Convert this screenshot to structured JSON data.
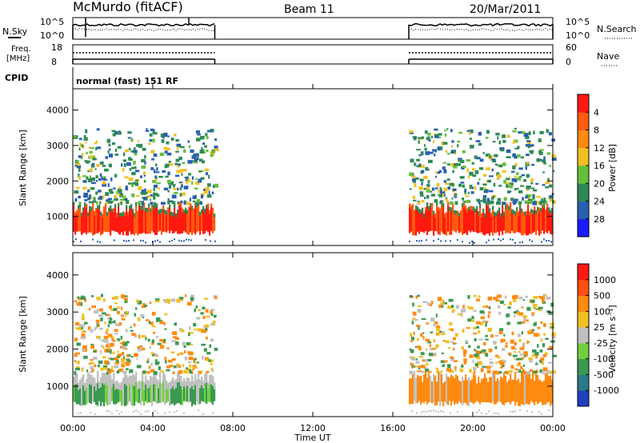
{
  "header": {
    "station": "McMurdo (fitACF)",
    "beam": "Beam 11",
    "date": "20/Mar/2011"
  },
  "status_panels": {
    "nsky_label": "N.Sky",
    "nsky_ticks": [
      "10^5",
      "10^0"
    ],
    "nsearch_label": "N.Search",
    "freq_label_line1": "Freq.",
    "freq_label_line2": "[MHz]",
    "freq_ticks": [
      "18",
      "8"
    ],
    "nave_ticks": [
      "60",
      "0"
    ],
    "nave_label": "Nave",
    "cpid_label": "CPID",
    "cpid_text": "normal (fast) 151 RF"
  },
  "x_axis": {
    "ticks": [
      "00:00",
      "04:00",
      "08:00",
      "12:00",
      "16:00",
      "20:00",
      "00:00"
    ],
    "label": "Time UT"
  },
  "chart_data": [
    {
      "type": "heatmap",
      "title": "Power",
      "ylabel": "Slant Range [km]",
      "colorbar_label": "Power [dB]",
      "x_range_hours": [
        0,
        24
      ],
      "y_range_km": [
        180,
        4600
      ],
      "y_ticks": [
        1000,
        2000,
        3000,
        4000
      ],
      "colorbar_ticks": [
        "4",
        "8",
        "12",
        "16",
        "20",
        "24",
        "28"
      ],
      "colorbar_colors": [
        "#1a1aff",
        "#2a5fb0",
        "#2e8a55",
        "#64c038",
        "#f0c020",
        "#ff8a10",
        "#ff5a10",
        "#ff1a10"
      ],
      "data_windows_hours": [
        [
          0,
          7.1
        ],
        [
          16.8,
          24
        ]
      ],
      "main_echo_band_km": [
        500,
        1400
      ],
      "scatter_band_km": [
        1400,
        3500
      ],
      "dominant_colors": [
        "#ff1a10",
        "#ff5a10",
        "#2e8a55",
        "#2a5fb0"
      ]
    },
    {
      "type": "heatmap",
      "title": "Velocity",
      "ylabel": "Slant Range [km]",
      "colorbar_label": "Velocity [m s⁻¹]",
      "x_range_hours": [
        0,
        24
      ],
      "y_range_km": [
        180,
        4600
      ],
      "y_ticks": [
        1000,
        2000,
        3000,
        4000
      ],
      "colorbar_ticks": [
        "1000",
        "500",
        "100",
        "25",
        "-25",
        "-100",
        "-500",
        "-1000"
      ],
      "colorbar_colors": [
        "#2040c0",
        "#2a7a8a",
        "#3a9a50",
        "#70d040",
        "#c0c0c0",
        "#f0c020",
        "#ff8a10",
        "#ff5010",
        "#ff1a10"
      ],
      "data_windows_hours": [
        [
          0,
          7.1
        ],
        [
          16.8,
          24
        ]
      ],
      "main_echo_band_km": [
        500,
        1400
      ],
      "scatter_band_km": [
        1400,
        3500
      ],
      "dominant_colors": [
        "#3a9a50",
        "#70d040",
        "#c0c0c0",
        "#ff8a10"
      ]
    }
  ]
}
